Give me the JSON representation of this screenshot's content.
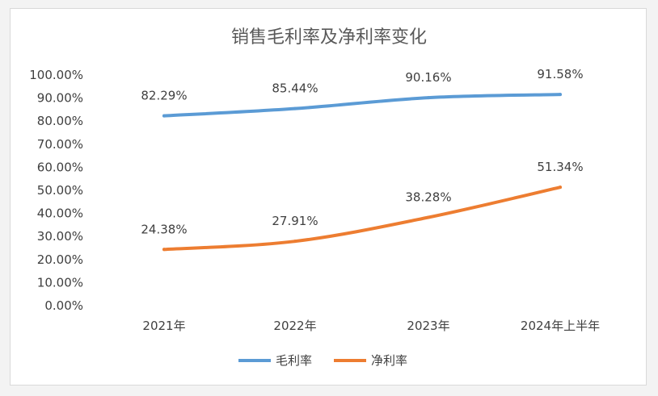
{
  "chart_data": {
    "type": "line",
    "title": "销售毛利率及净利率变化",
    "xlabel": "",
    "ylabel": "",
    "categories": [
      "2021年",
      "2022年",
      "2023年",
      "2024年上半年"
    ],
    "y_ticks": [
      "100.00%",
      "90.00%",
      "80.00%",
      "70.00%",
      "60.00%",
      "50.00%",
      "40.00%",
      "30.00%",
      "20.00%",
      "10.00%",
      "0.00%"
    ],
    "ylim": [
      0,
      100
    ],
    "y_unit": "%",
    "grid": false,
    "legend_position": "bottom",
    "series": [
      {
        "name": "毛利率",
        "color": "#5b9bd5",
        "values": [
          82.29,
          85.44,
          90.16,
          91.58
        ],
        "labels": [
          "82.29%",
          "85.44%",
          "90.16%",
          "91.58%"
        ]
      },
      {
        "name": "净利率",
        "color": "#ed7d31",
        "values": [
          24.38,
          27.91,
          38.28,
          51.34
        ],
        "labels": [
          "24.38%",
          "27.91%",
          "38.28%",
          "51.34%"
        ]
      }
    ]
  }
}
